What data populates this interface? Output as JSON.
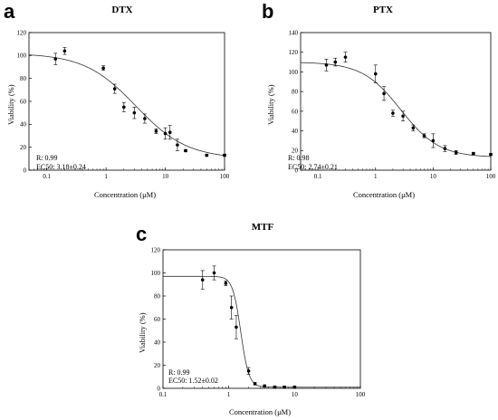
{
  "chart_data": [
    {
      "type": "scatter",
      "panel_letter": "a",
      "title": "DTX",
      "xlabel": "Concentration (μM)",
      "ylabel": "Viability (%)",
      "x_scale": "log",
      "xlim": [
        0.05,
        100
      ],
      "ylim": [
        0,
        120
      ],
      "x_ticks": [
        "0.1",
        "1",
        "10",
        "100"
      ],
      "y_ticks": [
        0,
        20,
        40,
        60,
        80,
        100,
        120
      ],
      "annotations": [
        "R: 0.99",
        "EC50: 3.18±0.24"
      ],
      "grid": false,
      "fit": {
        "top": 102,
        "bottom": 10,
        "ec50": 3.18,
        "hill": 1.0
      },
      "points": [
        {
          "x": 0.14,
          "y": 97,
          "err": 5
        },
        {
          "x": 0.2,
          "y": 104,
          "err": 3
        },
        {
          "x": 0.9,
          "y": 89,
          "err": 2
        },
        {
          "x": 1.4,
          "y": 71,
          "err": 4
        },
        {
          "x": 2.0,
          "y": 55,
          "err": 4
        },
        {
          "x": 3.0,
          "y": 50,
          "err": 5
        },
        {
          "x": 4.5,
          "y": 45,
          "err": 4
        },
        {
          "x": 7.0,
          "y": 34,
          "err": 2
        },
        {
          "x": 10.0,
          "y": 32,
          "err": 5
        },
        {
          "x": 12.0,
          "y": 33,
          "err": 6
        },
        {
          "x": 16.0,
          "y": 22,
          "err": 5
        },
        {
          "x": 22.0,
          "y": 17,
          "err": 1
        },
        {
          "x": 50.0,
          "y": 13,
          "err": 1
        },
        {
          "x": 100.0,
          "y": 13,
          "err": 1
        }
      ]
    },
    {
      "type": "scatter",
      "panel_letter": "b",
      "title": "PTX",
      "xlabel": "Concentration (μM)",
      "ylabel": "Viability (%)",
      "x_scale": "log",
      "xlim": [
        0.05,
        100
      ],
      "ylim": [
        0,
        140
      ],
      "x_ticks": [
        "0.1",
        "1",
        "10",
        "100"
      ],
      "y_ticks": [
        0,
        20,
        40,
        60,
        80,
        100,
        120,
        140
      ],
      "annotations": [
        "R: 0.98",
        "EC50: 2.74±0.21"
      ],
      "grid": false,
      "fit": {
        "top": 110,
        "bottom": 13,
        "ec50": 2.74,
        "hill": 1.3
      },
      "points": [
        {
          "x": 0.14,
          "y": 107,
          "err": 6
        },
        {
          "x": 0.2,
          "y": 110,
          "err": 4
        },
        {
          "x": 0.3,
          "y": 115,
          "err": 5
        },
        {
          "x": 1.0,
          "y": 98,
          "err": 9
        },
        {
          "x": 1.4,
          "y": 78,
          "err": 7
        },
        {
          "x": 2.0,
          "y": 58,
          "err": 3
        },
        {
          "x": 3.0,
          "y": 55,
          "err": 5
        },
        {
          "x": 4.5,
          "y": 43,
          "err": 3
        },
        {
          "x": 7.0,
          "y": 35,
          "err": 2
        },
        {
          "x": 10.0,
          "y": 30,
          "err": 7
        },
        {
          "x": 16.0,
          "y": 22,
          "err": 3
        },
        {
          "x": 25.0,
          "y": 18,
          "err": 2
        },
        {
          "x": 50.0,
          "y": 17,
          "err": 1
        },
        {
          "x": 100.0,
          "y": 16,
          "err": 1
        }
      ]
    },
    {
      "type": "scatter",
      "panel_letter": "c",
      "title": "MTF",
      "xlabel": "Concentration (μM)",
      "ylabel": "Viability (%)",
      "x_scale": "log",
      "xlim": [
        0.1,
        100
      ],
      "ylim": [
        0,
        120
      ],
      "x_ticks": [
        "0.1",
        "1",
        "10",
        "100"
      ],
      "y_ticks": [
        0,
        20,
        40,
        60,
        80,
        100,
        120
      ],
      "annotations": [
        "R: 0.99",
        "EC50: 1.52±0.02"
      ],
      "grid": false,
      "fit": {
        "top": 97,
        "bottom": 1,
        "ec50": 1.52,
        "hill": 7.0
      },
      "points": [
        {
          "x": 0.4,
          "y": 94,
          "err": 8
        },
        {
          "x": 0.6,
          "y": 100,
          "err": 6
        },
        {
          "x": 0.9,
          "y": 91,
          "err": 2
        },
        {
          "x": 1.1,
          "y": 70,
          "err": 10
        },
        {
          "x": 1.3,
          "y": 53,
          "err": 10
        },
        {
          "x": 2.0,
          "y": 15,
          "err": 3
        },
        {
          "x": 2.5,
          "y": 4,
          "err": 1
        },
        {
          "x": 3.5,
          "y": 2,
          "err": 1
        },
        {
          "x": 5.0,
          "y": 1,
          "err": 1
        },
        {
          "x": 7.0,
          "y": 1,
          "err": 1
        },
        {
          "x": 10.0,
          "y": 1,
          "err": 1
        }
      ]
    }
  ]
}
